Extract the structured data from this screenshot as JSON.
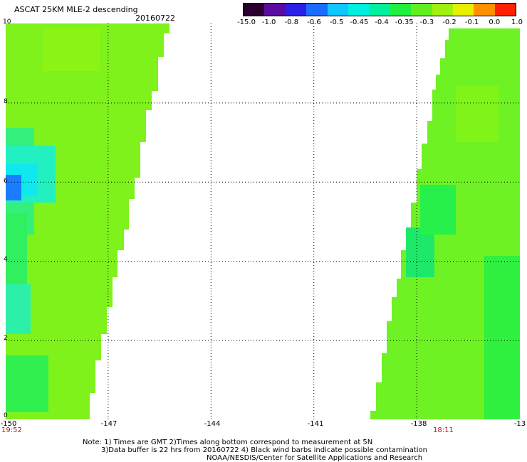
{
  "header": {
    "title": "ASCAT 25KM MLE-2 descending",
    "date": "20160722"
  },
  "colorbar": {
    "labels": [
      "-15.0",
      "-1.0",
      "-0.8",
      "-0.6",
      "-0.5",
      "-0.45",
      "-0.4",
      "-0.35",
      "-0.3",
      "-0.2",
      "-0.1",
      "0.0",
      "1.0"
    ],
    "colors": [
      "#2a0030",
      "#5a0ca0",
      "#2a20e8",
      "#1a6cff",
      "#10c8ff",
      "#00f0e0",
      "#00f0a0",
      "#20f040",
      "#60f020",
      "#a0f010",
      "#e8f000",
      "#ff9000",
      "#ff2000"
    ]
  },
  "axes": {
    "y_ticks": [
      "10",
      "8",
      "6",
      "4",
      "2",
      "0"
    ],
    "x_ticks": [
      "-150",
      "-147",
      "-144",
      "-141",
      "-138",
      "-13"
    ],
    "x_range": [
      -150,
      -135
    ],
    "y_range": [
      0,
      10
    ]
  },
  "times": {
    "left": "19:52",
    "right": "18:11"
  },
  "notes": {
    "line1": "Note: 1) Times are GMT 2)Times along bottom correspond to measurement at 5N",
    "line2": "3)Data buffer is 22 hrs from 20160722 4) Black wind barbs indicate possible contamination",
    "line3": "NOAA/NESDIS/Center for Satellite Applications and Research"
  }
}
